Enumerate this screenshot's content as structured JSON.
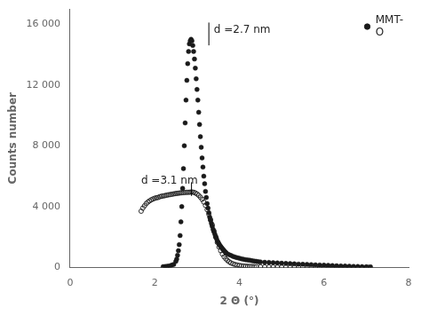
{
  "chart_data": {
    "type": "scatter",
    "xlabel": "2 Θ (°)",
    "ylabel": "Counts number",
    "xlim": [
      0,
      8
    ],
    "ylim": [
      0,
      17000
    ],
    "xticks": [
      0,
      2,
      4,
      6,
      8
    ],
    "yticks": [
      0,
      {
        "value": 4000,
        "label": "4 000"
      },
      {
        "value": 8000,
        "label": "8 000"
      },
      {
        "value": 12000,
        "label": "12 000"
      },
      {
        "value": 16000,
        "label": "16 000"
      }
    ],
    "grid": false,
    "legend": "upper right",
    "series": [
      {
        "name": "MMT-\nO",
        "type": "scatter",
        "marker": "filled",
        "color": "#1a1a1a",
        "x": [
          2.2,
          2.25,
          2.3,
          2.35,
          2.4,
          2.45,
          2.5,
          2.52,
          2.54,
          2.56,
          2.58,
          2.6,
          2.62,
          2.64,
          2.66,
          2.68,
          2.7,
          2.72,
          2.74,
          2.76,
          2.78,
          2.8,
          2.82,
          2.84,
          2.86,
          2.88,
          2.9,
          2.92,
          2.94,
          2.96,
          2.98,
          3.0,
          3.02,
          3.04,
          3.06,
          3.08,
          3.1,
          3.12,
          3.14,
          3.16,
          3.18,
          3.2,
          3.22,
          3.24,
          3.26,
          3.28,
          3.3,
          3.32,
          3.34,
          3.36,
          3.38,
          3.4,
          3.42,
          3.44,
          3.46,
          3.48,
          3.5,
          3.52,
          3.54,
          3.56,
          3.58,
          3.6,
          3.62,
          3.64,
          3.66,
          3.68,
          3.7,
          3.75,
          3.8,
          3.85,
          3.9,
          3.95,
          4.0,
          4.05,
          4.1,
          4.15,
          4.2,
          4.25,
          4.3,
          4.35,
          4.4,
          4.45,
          4.5,
          4.6,
          4.7,
          4.8,
          4.9,
          5.0,
          5.1,
          5.2,
          5.3,
          5.4,
          5.5,
          5.6,
          5.7,
          5.8,
          5.9,
          6.0,
          6.1,
          6.2,
          6.3,
          6.4,
          6.5,
          6.6,
          6.7,
          6.8,
          6.9,
          7.0,
          7.1
        ],
        "values": [
          50,
          60,
          80,
          100,
          150,
          200,
          400,
          550,
          800,
          1100,
          1500,
          2100,
          3000,
          4000,
          5200,
          6500,
          8000,
          9500,
          11000,
          12300,
          13400,
          14200,
          14700,
          14900,
          15000,
          14900,
          14600,
          14200,
          13700,
          13100,
          12400,
          11700,
          11000,
          10200,
          9400,
          8600,
          7900,
          7200,
          6600,
          6000,
          5500,
          5000,
          4600,
          4200,
          3900,
          3600,
          3300,
          3100,
          2900,
          2700,
          2500,
          2350,
          2200,
          2050,
          1900,
          1750,
          1650,
          1550,
          1450,
          1380,
          1300,
          1230,
          1170,
          1100,
          1040,
          980,
          930,
          850,
          790,
          730,
          680,
          640,
          600,
          570,
          540,
          510,
          490,
          470,
          440,
          420,
          400,
          380,
          360,
          340,
          330,
          310,
          295,
          280,
          265,
          250,
          235,
          220,
          210,
          200,
          185,
          170,
          160,
          150,
          135,
          120,
          110,
          100,
          90,
          80,
          70,
          60,
          50,
          45,
          40
        ]
      },
      {
        "type": "scatter",
        "marker": "open",
        "color": "#1a1a1a",
        "x": [
          1.68,
          1.72,
          1.76,
          1.8,
          1.84,
          1.88,
          1.92,
          1.96,
          2.0,
          2.04,
          2.08,
          2.12,
          2.16,
          2.2,
          2.24,
          2.28,
          2.32,
          2.36,
          2.4,
          2.44,
          2.48,
          2.52,
          2.56,
          2.6,
          2.64,
          2.68,
          2.72,
          2.76,
          2.8,
          2.84,
          2.88,
          2.92,
          2.96,
          3.0,
          3.04,
          3.08,
          3.12,
          3.16,
          3.2,
          3.24,
          3.28,
          3.32,
          3.36,
          3.4,
          3.44,
          3.48,
          3.52,
          3.56,
          3.6,
          3.64,
          3.68,
          3.72,
          3.76,
          3.8,
          3.85,
          3.9,
          3.95,
          4.0,
          4.05,
          4.1,
          4.15,
          4.2,
          4.25,
          4.3,
          4.35,
          4.4,
          4.5,
          4.6,
          4.7,
          4.8,
          4.9,
          5.0,
          5.1,
          5.2,
          5.3,
          5.4,
          5.5,
          5.6,
          5.7,
          5.8,
          5.9,
          6.0,
          6.1,
          6.2,
          6.3,
          6.4,
          6.5,
          6.6,
          6.7,
          6.8,
          6.9,
          7.0,
          7.05
        ],
        "values": [
          3700,
          3900,
          4050,
          4200,
          4300,
          4380,
          4450,
          4500,
          4550,
          4580,
          4600,
          4650,
          4680,
          4700,
          4720,
          4750,
          4770,
          4790,
          4810,
          4830,
          4850,
          4870,
          4880,
          4900,
          4910,
          4920,
          4930,
          4940,
          4940,
          4950,
          4960,
          4940,
          4900,
          4830,
          4740,
          4620,
          4480,
          4300,
          4080,
          3800,
          3500,
          3150,
          2800,
          2400,
          2000,
          1650,
          1350,
          1100,
          880,
          700,
          570,
          460,
          370,
          300,
          240,
          195,
          160,
          130,
          110,
          95,
          82,
          72,
          64,
          57,
          52,
          47,
          40,
          34,
          29,
          25,
          22,
          20,
          18,
          16,
          15,
          14,
          13,
          12,
          12,
          11,
          11,
          10,
          10,
          10,
          9,
          9,
          8,
          8,
          8,
          7,
          7,
          7,
          7
        ]
      },
      {
        "type": "line",
        "color": "black",
        "x": [
          3.28,
          3.28
        ],
        "values": [
          14600,
          16100
        ]
      },
      {
        "type": "line",
        "color": "black",
        "x": [
          2.87,
          2.87
        ],
        "values": [
          4700,
          5600
        ]
      }
    ],
    "annotations": [
      {
        "text": "d =2.7 nm",
        "x": 3.4,
        "y": 15600
      },
      {
        "text": "d =3.1 nm",
        "x": 1.68,
        "y": 5700
      }
    ]
  }
}
